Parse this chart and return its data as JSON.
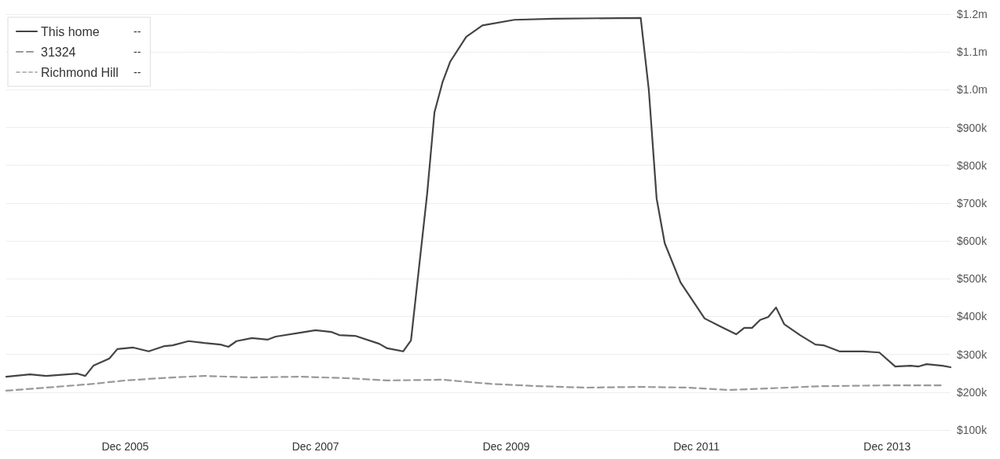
{
  "chart_data": {
    "type": "line",
    "xlim": [
      "2004-09",
      "2014-08"
    ],
    "xticks": [
      {
        "value": "2005-12",
        "label": "Dec 2005"
      },
      {
        "value": "2007-12",
        "label": "Dec 2007"
      },
      {
        "value": "2009-12",
        "label": "Dec 2009"
      },
      {
        "value": "2011-12",
        "label": "Dec 2011"
      },
      {
        "value": "2013-12",
        "label": "Dec 2013"
      }
    ],
    "ylim": [
      100000,
      1200000
    ],
    "yticks": [
      {
        "value": 100000,
        "label": "$100k"
      },
      {
        "value": 200000,
        "label": "$200k"
      },
      {
        "value": 300000,
        "label": "$300k"
      },
      {
        "value": 400000,
        "label": "$400k"
      },
      {
        "value": 500000,
        "label": "$500k"
      },
      {
        "value": 600000,
        "label": "$600k"
      },
      {
        "value": 700000,
        "label": "$700k"
      },
      {
        "value": 800000,
        "label": "$800k"
      },
      {
        "value": 900000,
        "label": "$900k"
      },
      {
        "value": 1000000,
        "label": "$1.0m"
      },
      {
        "value": 1100000,
        "label": "$1.1m"
      },
      {
        "value": 1200000,
        "label": "$1.2m"
      }
    ],
    "grid": "y",
    "legend": "top left",
    "marker": "none",
    "annotations": [
      "--",
      "--",
      "--"
    ],
    "series": [
      {
        "name": "This home",
        "color": "#444444",
        "line_style": "solid",
        "x": [
          "2004-09",
          "2004-12",
          "2005-02",
          "2005-06",
          "2005-07",
          "2005-08",
          "2005-10",
          "2005-11",
          "2006-01",
          "2006-03",
          "2006-05",
          "2006-06",
          "2006-08",
          "2006-10",
          "2006-12",
          "2007-01",
          "2007-02",
          "2007-04",
          "2007-06",
          "2007-07",
          "2007-10",
          "2007-12",
          "2008-02",
          "2008-03",
          "2008-05",
          "2008-08",
          "2008-09",
          "2008-11",
          "2008-12",
          "2009-02",
          "2009-03",
          "2009-04",
          "2009-05",
          "2009-07",
          "2009-09",
          "2010-01",
          "2010-06",
          "2011-05",
          "2011-06",
          "2011-07",
          "2011-08",
          "2011-10",
          "2012-01",
          "2012-03",
          "2012-05",
          "2012-06",
          "2012-07",
          "2012-08",
          "2012-09",
          "2012-10",
          "2012-11",
          "2013-01",
          "2013-03",
          "2013-04",
          "2013-06",
          "2013-09",
          "2013-11",
          "2014-01",
          "2014-03",
          "2014-04",
          "2014-05",
          "2014-07",
          "2014-08"
        ],
        "values": [
          241000,
          247000,
          243000,
          249000,
          243000,
          270000,
          289000,
          314000,
          318000,
          308000,
          322000,
          324000,
          335000,
          330000,
          326000,
          320000,
          335000,
          343000,
          339000,
          347000,
          357000,
          364000,
          359000,
          351000,
          349000,
          328000,
          316000,
          308000,
          337000,
          725000,
          940000,
          1020000,
          1075000,
          1140000,
          1170000,
          1185000,
          1188000,
          1190000,
          1000000,
          712000,
          594000,
          490000,
          395000,
          374000,
          353000,
          370000,
          370000,
          391000,
          399000,
          424000,
          380000,
          351000,
          326000,
          324000,
          308000,
          308000,
          305000,
          268000,
          270000,
          268000,
          274000,
          270000,
          266000
        ]
      },
      {
        "name": "31324",
        "color": "#999999",
        "line_style": "dashed",
        "x": [
          "2004-09",
          "2005-02",
          "2005-08",
          "2005-12",
          "2006-06",
          "2006-10",
          "2007-04",
          "2007-10",
          "2008-04",
          "2008-09",
          "2009-04",
          "2009-10",
          "2010-04",
          "2010-10",
          "2011-05",
          "2011-11",
          "2012-04",
          "2012-09",
          "2013-04",
          "2013-12",
          "2014-07"
        ],
        "values": [
          204000,
          212000,
          222000,
          231000,
          239000,
          243000,
          239000,
          241000,
          237000,
          231000,
          233000,
          222000,
          216000,
          212000,
          214000,
          212000,
          206000,
          210000,
          216000,
          218000,
          218000
        ]
      },
      {
        "name": "Richmond Hill",
        "color": "#bbbbbb",
        "line_style": "dotted"
      }
    ]
  }
}
